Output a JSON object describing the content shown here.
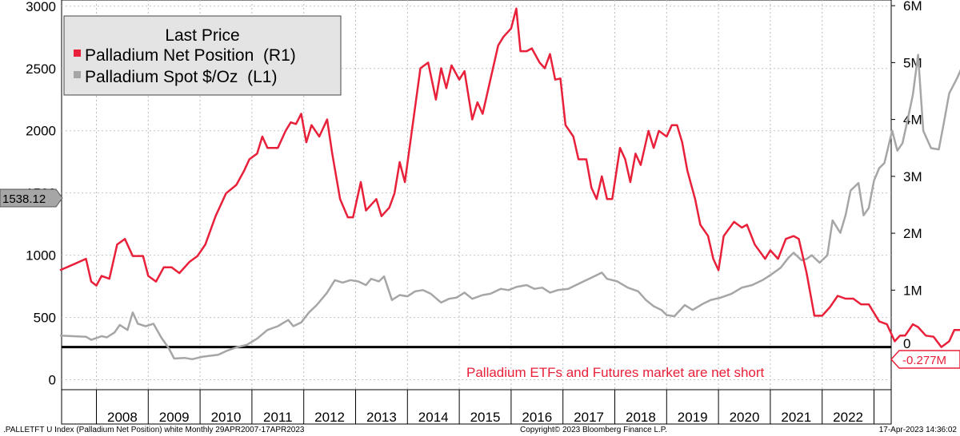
{
  "chart_data": {
    "type": "line",
    "x": {
      "start": "2007-04",
      "end": "2023-04",
      "frequency": "monthly"
    },
    "year_labels": [
      "2008",
      "2009",
      "2010",
      "2011",
      "2012",
      "2013",
      "2014",
      "2015",
      "2016",
      "2017",
      "2018",
      "2019",
      "2020",
      "2021",
      "2022"
    ],
    "left_axis": {
      "ticks": [
        "0",
        "500",
        "1000",
        "1500",
        "2000",
        "2500",
        "3000"
      ],
      "range": [
        -80,
        3050
      ]
    },
    "right_axis": {
      "ticks": [
        "0",
        "1M",
        "2M",
        "3M",
        "4M",
        "5M",
        "6M"
      ],
      "range": [
        -0.75,
        6.1
      ],
      "unit": "M"
    },
    "legend": {
      "title": "Last Price",
      "items": [
        {
          "label": "Palladium Net Position  (R1)",
          "color": "#e8203a"
        },
        {
          "label": "Palladium Spot $/Oz  (L1)",
          "color": "#a6a6a6"
        }
      ]
    },
    "series": [
      {
        "name": "Palladium Net Position  (R1)",
        "axis": "right",
        "color": "#e8203a",
        "anchors": [
          [
            2007.3,
            1.35
          ],
          [
            2007.55,
            1.45
          ],
          [
            2007.8,
            1.55
          ],
          [
            2007.9,
            1.15
          ],
          [
            2008.0,
            1.08
          ],
          [
            2008.1,
            1.25
          ],
          [
            2008.25,
            1.2
          ],
          [
            2008.4,
            1.8
          ],
          [
            2008.55,
            1.9
          ],
          [
            2008.7,
            1.6
          ],
          [
            2008.9,
            1.6
          ],
          [
            2009.0,
            1.25
          ],
          [
            2009.15,
            1.15
          ],
          [
            2009.3,
            1.4
          ],
          [
            2009.45,
            1.4
          ],
          [
            2009.6,
            1.3
          ],
          [
            2009.8,
            1.5
          ],
          [
            2009.95,
            1.6
          ],
          [
            2010.1,
            1.8
          ],
          [
            2010.3,
            2.3
          ],
          [
            2010.5,
            2.7
          ],
          [
            2010.7,
            2.85
          ],
          [
            2010.85,
            3.1
          ],
          [
            2010.95,
            3.3
          ],
          [
            2011.1,
            3.4
          ],
          [
            2011.2,
            3.7
          ],
          [
            2011.3,
            3.5
          ],
          [
            2011.5,
            3.5
          ],
          [
            2011.65,
            3.8
          ],
          [
            2011.75,
            3.95
          ],
          [
            2011.85,
            3.92
          ],
          [
            2011.95,
            4.1
          ],
          [
            2012.05,
            3.6
          ],
          [
            2012.15,
            3.9
          ],
          [
            2012.3,
            3.7
          ],
          [
            2012.45,
            4.0
          ],
          [
            2012.55,
            3.4
          ],
          [
            2012.7,
            2.6
          ],
          [
            2012.85,
            2.28
          ],
          [
            2012.95,
            2.28
          ],
          [
            2013.1,
            2.9
          ],
          [
            2013.2,
            2.4
          ],
          [
            2013.4,
            2.6
          ],
          [
            2013.5,
            2.3
          ],
          [
            2013.65,
            2.45
          ],
          [
            2013.75,
            2.7
          ],
          [
            2013.85,
            3.25
          ],
          [
            2013.95,
            2.9
          ],
          [
            2014.1,
            3.9
          ],
          [
            2014.25,
            4.9
          ],
          [
            2014.4,
            5.0
          ],
          [
            2014.55,
            4.35
          ],
          [
            2014.65,
            4.9
          ],
          [
            2014.75,
            4.55
          ],
          [
            2014.85,
            4.95
          ],
          [
            2015.0,
            4.7
          ],
          [
            2015.1,
            4.85
          ],
          [
            2015.25,
            4.0
          ],
          [
            2015.35,
            4.3
          ],
          [
            2015.45,
            4.1
          ],
          [
            2015.6,
            4.7
          ],
          [
            2015.75,
            5.3
          ],
          [
            2015.85,
            5.45
          ],
          [
            2016.0,
            5.6
          ],
          [
            2016.1,
            5.95
          ],
          [
            2016.18,
            5.2
          ],
          [
            2016.3,
            5.2
          ],
          [
            2016.4,
            5.25
          ],
          [
            2016.55,
            5.0
          ],
          [
            2016.65,
            4.9
          ],
          [
            2016.75,
            5.15
          ],
          [
            2016.85,
            4.7
          ],
          [
            2016.95,
            4.72
          ],
          [
            2017.05,
            3.9
          ],
          [
            2017.2,
            3.7
          ],
          [
            2017.3,
            3.3
          ],
          [
            2017.45,
            3.3
          ],
          [
            2017.55,
            2.8
          ],
          [
            2017.65,
            2.6
          ],
          [
            2017.75,
            3.0
          ],
          [
            2017.85,
            2.6
          ],
          [
            2017.95,
            2.6
          ],
          [
            2018.1,
            3.5
          ],
          [
            2018.2,
            3.3
          ],
          [
            2018.3,
            2.9
          ],
          [
            2018.4,
            3.4
          ],
          [
            2018.5,
            3.2
          ],
          [
            2018.65,
            3.8
          ],
          [
            2018.75,
            3.5
          ],
          [
            2018.85,
            3.8
          ],
          [
            2019.0,
            3.7
          ],
          [
            2019.1,
            3.9
          ],
          [
            2019.2,
            3.9
          ],
          [
            2019.3,
            3.6
          ],
          [
            2019.4,
            3.1
          ],
          [
            2019.55,
            2.6
          ],
          [
            2019.65,
            2.15
          ],
          [
            2019.8,
            1.95
          ],
          [
            2019.9,
            1.55
          ],
          [
            2020.0,
            1.35
          ],
          [
            2020.1,
            1.95
          ],
          [
            2020.3,
            2.2
          ],
          [
            2020.45,
            2.1
          ],
          [
            2020.55,
            2.15
          ],
          [
            2020.7,
            1.8
          ],
          [
            2020.9,
            1.55
          ],
          [
            2021.0,
            1.7
          ],
          [
            2021.15,
            1.55
          ],
          [
            2021.3,
            1.9
          ],
          [
            2021.45,
            1.95
          ],
          [
            2021.55,
            1.9
          ],
          [
            2021.7,
            1.3
          ],
          [
            2021.85,
            0.55
          ],
          [
            2022.0,
            0.55
          ],
          [
            2022.15,
            0.7
          ],
          [
            2022.3,
            0.9
          ],
          [
            2022.45,
            0.85
          ],
          [
            2022.6,
            0.85
          ],
          [
            2022.75,
            0.75
          ],
          [
            2022.9,
            0.75
          ],
          [
            2023.0,
            0.6
          ],
          [
            2023.1,
            0.45
          ],
          [
            2023.25,
            0.4
          ],
          [
            2023.4,
            0.1
          ],
          [
            2023.5,
            0.2
          ],
          [
            2023.6,
            0.2
          ],
          [
            2023.75,
            0.4
          ],
          [
            2023.85,
            0.35
          ],
          [
            2024.0,
            0.2
          ],
          [
            2024.15,
            0.18
          ],
          [
            2024.3,
            0.0
          ],
          [
            2024.45,
            0.1
          ],
          [
            2024.55,
            0.3
          ],
          [
            2024.7,
            0.3
          ],
          [
            2024.8,
            0.25
          ],
          [
            2024.9,
            0.3
          ],
          [
            2025.05,
            0.15
          ],
          [
            2025.15,
            0.25
          ],
          [
            2025.25,
            0.1
          ],
          [
            2025.4,
            0.2
          ],
          [
            2025.55,
            0.1
          ],
          [
            2025.7,
            -0.15
          ],
          [
            2025.85,
            -0.25
          ],
          [
            2025.95,
            -0.277
          ]
        ]
      },
      {
        "name": "Palladium Spot $/Oz  (L1)",
        "axis": "left",
        "color": "#a6a6a6",
        "anchors": [
          [
            2007.3,
            355
          ],
          [
            2007.55,
            350
          ],
          [
            2007.8,
            345
          ],
          [
            2007.9,
            320
          ],
          [
            2008.1,
            350
          ],
          [
            2008.2,
            340
          ],
          [
            2008.35,
            380
          ],
          [
            2008.45,
            440
          ],
          [
            2008.6,
            400
          ],
          [
            2008.7,
            540
          ],
          [
            2008.8,
            450
          ],
          [
            2008.95,
            430
          ],
          [
            2009.1,
            450
          ],
          [
            2009.25,
            340
          ],
          [
            2009.4,
            250
          ],
          [
            2009.5,
            170
          ],
          [
            2009.7,
            175
          ],
          [
            2009.85,
            165
          ],
          [
            2010.05,
            185
          ],
          [
            2010.15,
            190
          ],
          [
            2010.35,
            200
          ],
          [
            2010.5,
            230
          ],
          [
            2010.7,
            260
          ],
          [
            2010.9,
            280
          ],
          [
            2011.1,
            330
          ],
          [
            2011.3,
            400
          ],
          [
            2011.5,
            430
          ],
          [
            2011.7,
            480
          ],
          [
            2011.8,
            430
          ],
          [
            2011.95,
            460
          ],
          [
            2012.1,
            540
          ],
          [
            2012.25,
            600
          ],
          [
            2012.45,
            700
          ],
          [
            2012.6,
            800
          ],
          [
            2012.75,
            780
          ],
          [
            2012.9,
            800
          ],
          [
            2013.05,
            790
          ],
          [
            2013.2,
            760
          ],
          [
            2013.3,
            810
          ],
          [
            2013.45,
            790
          ],
          [
            2013.55,
            830
          ],
          [
            2013.7,
            640
          ],
          [
            2013.85,
            680
          ],
          [
            2014.0,
            670
          ],
          [
            2014.15,
            710
          ],
          [
            2014.3,
            720
          ],
          [
            2014.45,
            690
          ],
          [
            2014.65,
            620
          ],
          [
            2014.8,
            650
          ],
          [
            2014.95,
            660
          ],
          [
            2015.1,
            700
          ],
          [
            2015.25,
            650
          ],
          [
            2015.45,
            680
          ],
          [
            2015.6,
            690
          ],
          [
            2015.8,
            730
          ],
          [
            2015.95,
            720
          ],
          [
            2016.1,
            745
          ],
          [
            2016.3,
            760
          ],
          [
            2016.45,
            730
          ],
          [
            2016.6,
            740
          ],
          [
            2016.75,
            700
          ],
          [
            2016.9,
            720
          ],
          [
            2017.1,
            730
          ],
          [
            2017.35,
            780
          ],
          [
            2017.55,
            820
          ],
          [
            2017.75,
            860
          ],
          [
            2017.85,
            810
          ],
          [
            2018.05,
            790
          ],
          [
            2018.25,
            740
          ],
          [
            2018.45,
            710
          ],
          [
            2018.6,
            640
          ],
          [
            2018.75,
            590
          ],
          [
            2018.9,
            560
          ],
          [
            2019.0,
            520
          ],
          [
            2019.15,
            510
          ],
          [
            2019.35,
            600
          ],
          [
            2019.5,
            560
          ],
          [
            2019.7,
            610
          ],
          [
            2019.85,
            640
          ],
          [
            2020.05,
            660
          ],
          [
            2020.25,
            690
          ],
          [
            2020.45,
            740
          ],
          [
            2020.65,
            760
          ],
          [
            2020.85,
            800
          ],
          [
            2021.0,
            840
          ],
          [
            2021.2,
            900
          ],
          [
            2021.35,
            980
          ],
          [
            2021.45,
            1020
          ],
          [
            2021.6,
            960
          ],
          [
            2021.7,
            970
          ],
          [
            2021.8,
            1000
          ],
          [
            2021.95,
            940
          ],
          [
            2022.1,
            1000
          ],
          [
            2022.2,
            1280
          ],
          [
            2022.35,
            1180
          ],
          [
            2022.45,
            1320
          ],
          [
            2022.55,
            1520
          ],
          [
            2022.7,
            1580
          ],
          [
            2022.8,
            1320
          ],
          [
            2022.9,
            1380
          ],
          [
            2023.0,
            1600
          ],
          [
            2023.1,
            1700
          ],
          [
            2023.2,
            1740
          ],
          [
            2023.35,
            2000
          ],
          [
            2023.45,
            1840
          ],
          [
            2023.55,
            1900
          ],
          [
            2023.65,
            2090
          ],
          [
            2023.75,
            2290
          ],
          [
            2023.85,
            2610
          ],
          [
            2023.95,
            2000
          ],
          [
            2024.1,
            1860
          ],
          [
            2024.25,
            1850
          ],
          [
            2024.35,
            2070
          ],
          [
            2024.45,
            2300
          ],
          [
            2024.6,
            2420
          ],
          [
            2024.75,
            2560
          ],
          [
            2024.9,
            2450
          ],
          [
            2025.05,
            2520
          ],
          [
            2025.15,
            2700
          ],
          [
            2025.2,
            2830
          ],
          [
            2025.3,
            3000
          ],
          [
            2025.4,
            2900
          ],
          [
            2025.55,
            2600
          ],
          [
            2025.65,
            2480
          ],
          [
            2025.75,
            2100
          ],
          [
            2025.85,
            1870
          ],
          [
            2025.95,
            1520
          ],
          [
            2026.1,
            1670
          ],
          [
            2026.25,
            1730
          ],
          [
            2026.35,
            1960
          ],
          [
            2026.45,
            2480
          ],
          [
            2026.55,
            2250
          ],
          [
            2026.65,
            2020
          ],
          [
            2026.8,
            1960
          ],
          [
            2026.9,
            2120
          ],
          [
            2027.05,
            1870
          ],
          [
            2027.15,
            1860
          ],
          [
            2027.25,
            2070
          ],
          [
            2027.4,
            2090
          ],
          [
            2027.55,
            1780
          ],
          [
            2027.7,
            1780
          ],
          [
            2027.8,
            1700
          ],
          [
            2027.95,
            1500
          ],
          [
            2028.05,
            1550
          ],
          [
            2028.15,
            1540
          ]
        ]
      }
    ]
  },
  "labels": {
    "left_value_tag": "1538.12",
    "right_value_tag": "-0.277M",
    "right_zero": "0",
    "annotation": "Palladium ETFs and Futures market are net short",
    "footer_left": ".PALLETFT U Index (Palladium Net Position) white  Monthly 29APR2007-17APR2023",
    "footer_center": "Copyright© 2023 Bloomberg Finance L.P.",
    "footer_right": "17-Apr-2023 14:36:02"
  }
}
